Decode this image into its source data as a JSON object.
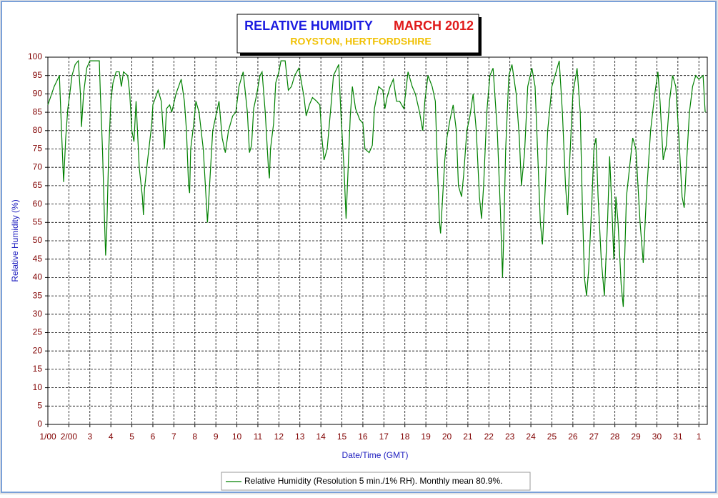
{
  "chart_data": {
    "type": "line",
    "title": "RELATIVE HUMIDITY",
    "title_date": "MARCH 2012",
    "subtitle": "ROYSTON, HERTFORDSHIRE",
    "xlabel": "Date/Time (GMT)",
    "ylabel": "Relative Humidity (%)",
    "xlim": [
      0,
      31.4
    ],
    "ylim": [
      0,
      100
    ],
    "xticks": [
      {
        "value": 0,
        "label": "1/00"
      },
      {
        "value": 1,
        "label": "2/00"
      },
      {
        "value": 2,
        "label": "3"
      },
      {
        "value": 3,
        "label": "4"
      },
      {
        "value": 4,
        "label": "5"
      },
      {
        "value": 5,
        "label": "6"
      },
      {
        "value": 6,
        "label": "7"
      },
      {
        "value": 7,
        "label": "8"
      },
      {
        "value": 8,
        "label": "9"
      },
      {
        "value": 9,
        "label": "10"
      },
      {
        "value": 10,
        "label": "11"
      },
      {
        "value": 11,
        "label": "12"
      },
      {
        "value": 12,
        "label": "13"
      },
      {
        "value": 13,
        "label": "14"
      },
      {
        "value": 14,
        "label": "15"
      },
      {
        "value": 15,
        "label": "16"
      },
      {
        "value": 16,
        "label": "17"
      },
      {
        "value": 17,
        "label": "18"
      },
      {
        "value": 18,
        "label": "19"
      },
      {
        "value": 19,
        "label": "20"
      },
      {
        "value": 20,
        "label": "21"
      },
      {
        "value": 21,
        "label": "22"
      },
      {
        "value": 22,
        "label": "23"
      },
      {
        "value": 23,
        "label": "24"
      },
      {
        "value": 24,
        "label": "25"
      },
      {
        "value": 25,
        "label": "26"
      },
      {
        "value": 26,
        "label": "27"
      },
      {
        "value": 27,
        "label": "28"
      },
      {
        "value": 28,
        "label": "29"
      },
      {
        "value": 29,
        "label": "30"
      },
      {
        "value": 30,
        "label": "31"
      },
      {
        "value": 31,
        "label": "1"
      }
    ],
    "yticks": [
      0,
      5,
      10,
      15,
      20,
      25,
      30,
      35,
      40,
      45,
      50,
      55,
      60,
      65,
      70,
      75,
      80,
      85,
      90,
      95,
      100
    ],
    "grid": true,
    "x": [
      0.0,
      0.3,
      0.55,
      0.65,
      0.72,
      0.75,
      0.85,
      0.95,
      1.0,
      1.15,
      1.3,
      1.45,
      1.55,
      1.6,
      1.7,
      1.85,
      2.0,
      2.3,
      2.45,
      2.5,
      2.6,
      2.7,
      2.75,
      2.8,
      2.9,
      3.0,
      3.1,
      3.25,
      3.4,
      3.5,
      3.6,
      3.8,
      3.9,
      4.0,
      4.1,
      4.2,
      4.35,
      4.5,
      4.55,
      4.6,
      4.75,
      4.95,
      5.0,
      5.25,
      5.4,
      5.55,
      5.65,
      5.8,
      5.9,
      6.1,
      6.35,
      6.5,
      6.6,
      6.7,
      6.75,
      6.8,
      6.95,
      7.05,
      7.2,
      7.4,
      7.5,
      7.6,
      7.7,
      7.85,
      8.0,
      8.15,
      8.3,
      8.45,
      8.6,
      8.8,
      8.95,
      9.1,
      9.3,
      9.5,
      9.6,
      9.7,
      9.8,
      9.95,
      10.1,
      10.2,
      10.35,
      10.5,
      10.55,
      10.6,
      10.75,
      10.85,
      11.0,
      11.1,
      11.3,
      11.45,
      11.6,
      11.75,
      11.95,
      12.05,
      12.2,
      12.3,
      12.45,
      12.6,
      12.8,
      12.95,
      13.05,
      13.15,
      13.3,
      13.5,
      13.6,
      13.85,
      13.95,
      14.1,
      14.2,
      14.3,
      14.4,
      14.5,
      14.65,
      14.85,
      15.0,
      15.1,
      15.3,
      15.45,
      15.55,
      15.75,
      15.95,
      16.05,
      16.15,
      16.3,
      16.45,
      16.6,
      16.75,
      16.95,
      17.15,
      17.35,
      17.5,
      17.7,
      17.85,
      17.95,
      18.1,
      18.3,
      18.45,
      18.55,
      18.65,
      18.7,
      18.8,
      18.9,
      19.0,
      19.15,
      19.3,
      19.45,
      19.55,
      19.7,
      19.8,
      19.95,
      20.1,
      20.25,
      20.4,
      20.55,
      20.65,
      20.75,
      20.9,
      21.05,
      21.2,
      21.4,
      21.55,
      21.65,
      21.7,
      21.8,
      21.95,
      22.1,
      22.3,
      22.45,
      22.55,
      22.7,
      22.85,
      23.05,
      23.2,
      23.35,
      23.45,
      23.55,
      23.65,
      23.8,
      24.0,
      24.15,
      24.35,
      24.5,
      24.65,
      24.75,
      24.85,
      25.0,
      25.2,
      25.35,
      25.45,
      25.55,
      25.65,
      25.75,
      25.9,
      26.0,
      26.1,
      26.2,
      26.35,
      26.5,
      26.65,
      26.75,
      26.85,
      26.95,
      27.05,
      27.15,
      27.3,
      27.4,
      27.55,
      27.7,
      27.85,
      28.0,
      28.2,
      28.35,
      28.5,
      28.7,
      28.9,
      29.05,
      29.15,
      29.3,
      29.45,
      29.6,
      29.75,
      29.9,
      30.05,
      30.2,
      30.3,
      30.4,
      30.55,
      30.7,
      30.85,
      31.0,
      31.2,
      31.3
    ],
    "series": [
      {
        "name": "Relative Humidity (Resolution 5 min./1% RH). Monthly mean 80.9%.",
        "color": "#008000",
        "values": [
          87,
          92,
          95,
          80,
          70,
          66,
          78,
          86,
          88,
          95,
          98,
          99,
          90,
          81,
          90,
          97,
          99,
          99,
          99,
          90,
          75,
          55,
          46,
          52,
          75,
          88,
          93,
          96,
          96,
          92,
          96,
          95,
          90,
          80,
          77,
          88,
          70,
          62,
          57,
          64,
          72,
          82,
          87,
          91,
          88,
          75,
          86,
          87,
          85,
          90,
          94,
          88,
          80,
          65,
          63,
          75,
          82,
          88,
          85,
          75,
          65,
          55,
          65,
          80,
          84,
          88,
          78,
          74,
          80,
          84,
          85,
          92,
          96,
          85,
          74,
          76,
          86,
          90,
          95,
          96,
          85,
          70,
          67,
          75,
          82,
          93,
          96,
          99,
          99,
          91,
          92,
          95,
          97,
          94,
          89,
          84,
          87,
          89,
          88,
          87,
          78,
          72,
          75,
          88,
          95,
          98,
          85,
          70,
          56,
          70,
          84,
          92,
          86,
          83,
          82,
          75,
          74,
          76,
          86,
          92,
          91,
          86,
          89,
          92,
          94,
          88,
          88,
          86,
          96,
          92,
          90,
          85,
          80,
          88,
          95,
          92,
          88,
          70,
          55,
          52,
          62,
          72,
          78,
          83,
          87,
          80,
          65,
          62,
          68,
          80,
          84,
          90,
          80,
          62,
          56,
          65,
          85,
          95,
          97,
          80,
          58,
          40,
          50,
          75,
          95,
          98,
          90,
          78,
          65,
          74,
          92,
          97,
          92,
          70,
          55,
          49,
          60,
          80,
          92,
          95,
          99,
          85,
          65,
          57,
          72,
          90,
          97,
          85,
          60,
          40,
          35,
          42,
          60,
          75,
          78,
          62,
          45,
          35,
          55,
          73,
          60,
          45,
          62,
          55,
          38,
          32,
          62,
          70,
          78,
          75,
          55,
          44,
          62,
          80,
          90,
          96,
          88,
          72,
          76,
          88,
          95,
          92,
          78,
          62,
          59,
          70,
          85,
          92,
          95,
          94,
          95,
          85
        ]
      }
    ]
  }
}
